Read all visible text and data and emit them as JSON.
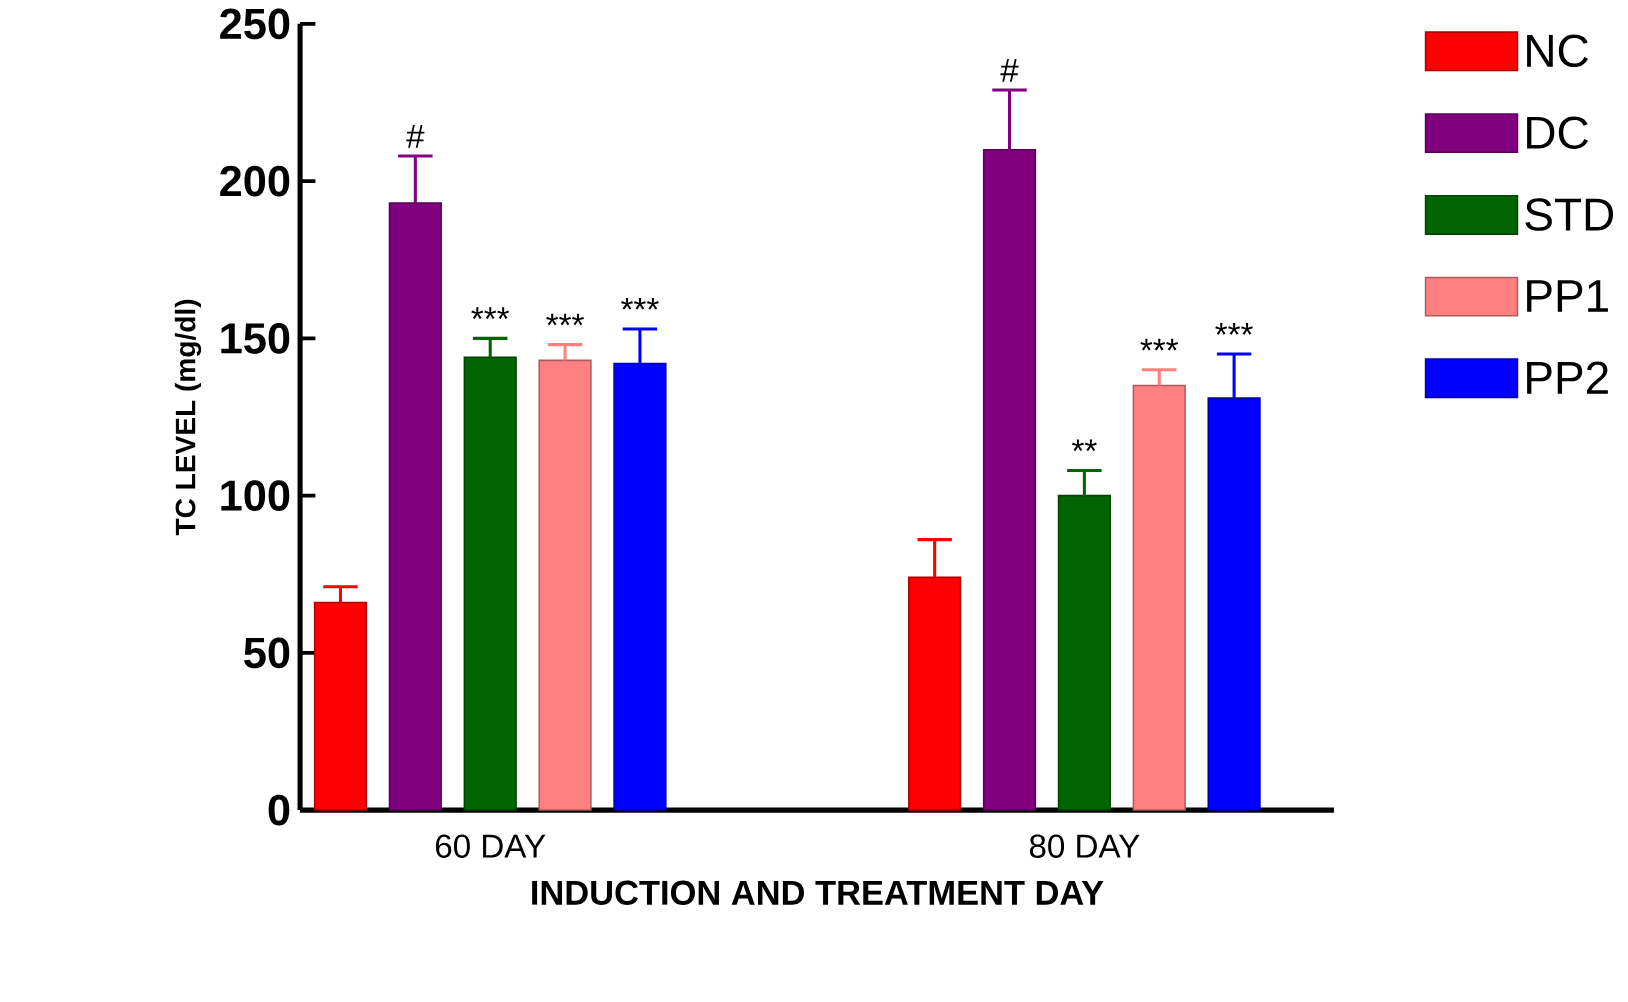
{
  "chart_data": {
    "type": "bar",
    "xlabel": "INDUCTION AND TREATMENT DAY",
    "ylabel": "TC LEVEL (mg/dl)",
    "categories": [
      "60 DAY",
      "80 DAY"
    ],
    "series": [
      {
        "name": "NC",
        "color": "#ff0000",
        "values": [
          66,
          74
        ],
        "errors": [
          [
            66,
            71
          ],
          [
            74,
            86
          ]
        ],
        "value_labels": [
          null,
          null
        ]
      },
      {
        "name": "DC",
        "color": "#800080",
        "values": [
          193,
          210
        ],
        "errors": [
          [
            193,
            208
          ],
          [
            210,
            229
          ]
        ],
        "value_labels": [
          "#",
          "#"
        ]
      },
      {
        "name": "STD",
        "color": "#006400",
        "values": [
          144,
          100
        ],
        "errors": [
          [
            144,
            150
          ],
          [
            100,
            108
          ]
        ],
        "value_labels": [
          "***",
          "**"
        ]
      },
      {
        "name": "PP1",
        "color": "#ff8080",
        "values": [
          143,
          135
        ],
        "errors": [
          [
            143,
            148
          ],
          [
            135,
            140
          ]
        ],
        "value_labels": [
          "***",
          "***"
        ]
      },
      {
        "name": "PP2",
        "color": "#0000ff",
        "values": [
          142,
          131
        ],
        "errors": [
          [
            142,
            153
          ],
          [
            131,
            145
          ]
        ],
        "value_labels": [
          "***",
          "***"
        ]
      }
    ],
    "ylim": [
      0,
      250
    ],
    "yticks": [
      0,
      50,
      100,
      150,
      200,
      250
    ],
    "legend": "right",
    "grid": false
  }
}
